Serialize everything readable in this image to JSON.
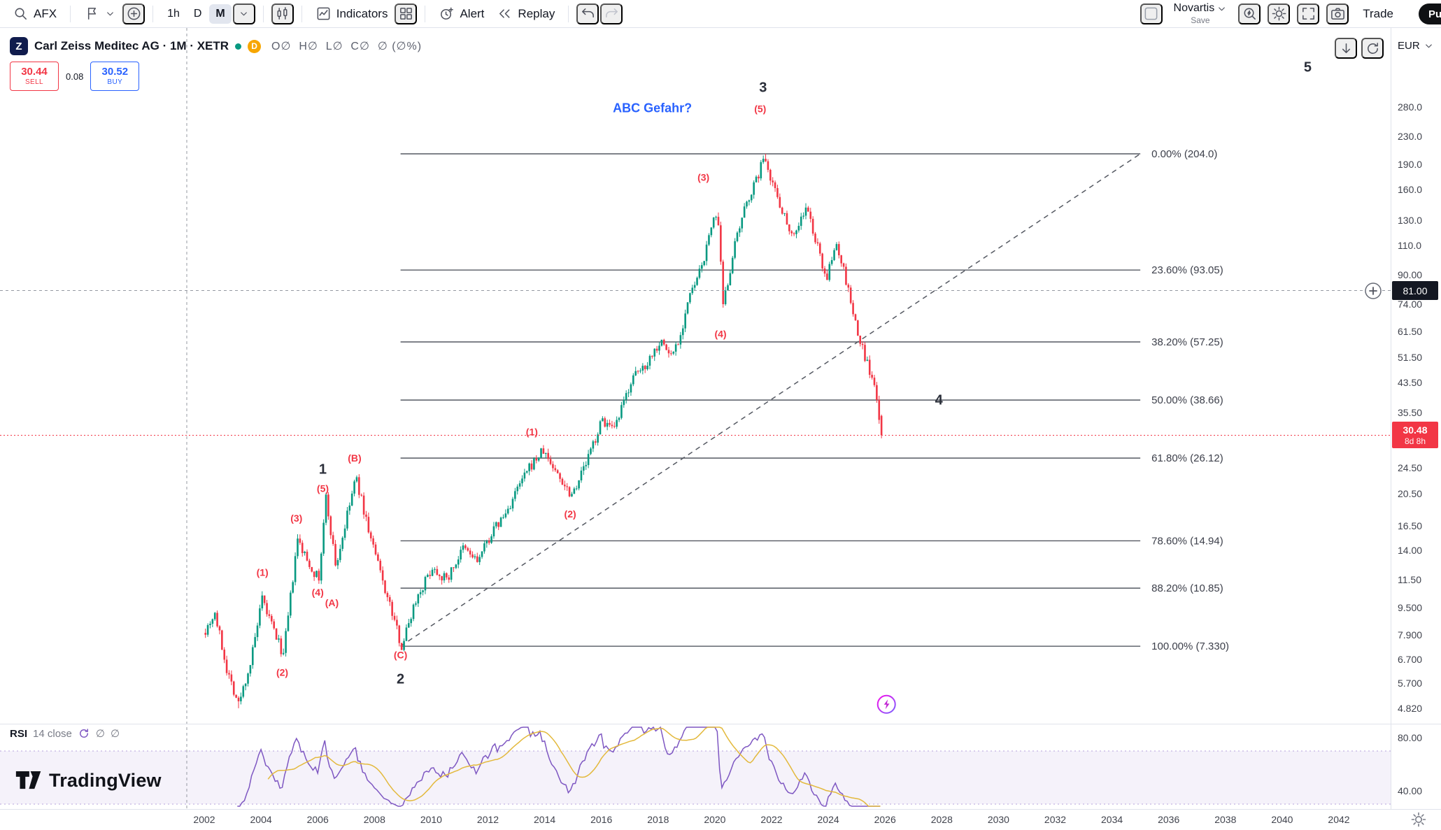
{
  "toolbar": {
    "symbol": "AFX",
    "tf_1h": "1h",
    "tf_d": "D",
    "tf_m": "M",
    "indicators": "Indicators",
    "alert": "Alert",
    "replay": "Replay",
    "layout_name": "Novartis",
    "save": "Save",
    "trade": "Trade",
    "publish": "Pu"
  },
  "symbol_header": {
    "logo_letter": "Z",
    "title": "Carl Zeiss Meditec AG · 1M · XETR",
    "delayed_badge": "D",
    "ohlc": "O∅  H∅  L∅  C∅  ∅ (∅%)"
  },
  "order_panel": {
    "sell_price": "30.44",
    "sell_label": "SELL",
    "spread": "0.08",
    "buy_price": "30.52",
    "buy_label": "BUY"
  },
  "price_scale": {
    "currency": "EUR",
    "crosshair_badge": "81.00",
    "last_badge": "30.48",
    "countdown": "8d 8h",
    "labels": [
      [
        "280.0",
        280
      ],
      [
        "230.0",
        230
      ],
      [
        "190.0",
        190
      ],
      [
        "160.0",
        160
      ],
      [
        "130.0",
        130
      ],
      [
        "110.0",
        110
      ],
      [
        "90.00",
        90
      ],
      [
        "74.00",
        74
      ],
      [
        "61.50",
        61.5
      ],
      [
        "51.50",
        51.5
      ],
      [
        "43.50",
        43.5
      ],
      [
        "35.50",
        35.5
      ],
      [
        "24.50",
        24.5
      ],
      [
        "20.50",
        20.5
      ],
      [
        "16.50",
        16.5
      ],
      [
        "14.00",
        14
      ],
      [
        "11.50",
        11.5
      ],
      [
        "9.500",
        9.5
      ],
      [
        "7.900",
        7.9
      ],
      [
        "6.700",
        6.7
      ],
      [
        "5.700",
        5.7
      ],
      [
        "4.820",
        4.82
      ]
    ]
  },
  "time_scale": {
    "labels": [
      "2002",
      "2004",
      "2006",
      "2008",
      "2010",
      "2012",
      "2014",
      "2016",
      "2018",
      "2020",
      "2022",
      "2024",
      "2026",
      "2028",
      "2030",
      "2032",
      "2034",
      "2036",
      "2038",
      "2040",
      "2042"
    ],
    "start_year": 2002,
    "step_years": 2
  },
  "rsi_pane": {
    "name": "RSI",
    "params": "14 close",
    "value1": "∅",
    "value2": "∅",
    "upper_label": "80.00",
    "lower_label": "40.00"
  },
  "watermark": "TradingView",
  "chart_data": {
    "type": "candlestick",
    "title": "Carl Zeiss Meditec AG",
    "interval": "1M",
    "exchange": "XETR",
    "currency": "EUR",
    "scale": "logarithmic",
    "up_color": "#089981",
    "down_color": "#F23645",
    "x_axis": {
      "start_year": 2002,
      "end_year": 2043.8,
      "visible_data_end": 2025.83
    },
    "y_axis": {
      "min": 4.5,
      "max": 480
    },
    "all_time_high": 204.0,
    "major_low_2008": 7.33,
    "last_price": 30.48,
    "crosshair_price": 81.0,
    "price_path": [
      [
        2002.0,
        8.2
      ],
      [
        2002.33,
        9.2
      ],
      [
        2002.75,
        6.3
      ],
      [
        2003.17,
        4.95
      ],
      [
        2003.6,
        6.6
      ],
      [
        2004.0,
        10.0
      ],
      [
        2004.4,
        8.2
      ],
      [
        2004.75,
        6.9
      ],
      [
        2005.25,
        15.0
      ],
      [
        2005.6,
        13.0
      ],
      [
        2006.0,
        11.5
      ],
      [
        2006.25,
        20.0
      ],
      [
        2006.6,
        12.5
      ],
      [
        2007.3,
        23.0
      ],
      [
        2007.8,
        15.5
      ],
      [
        2008.3,
        11.0
      ],
      [
        2008.92,
        7.33
      ],
      [
        2009.4,
        10.0
      ],
      [
        2010.0,
        12.5
      ],
      [
        2010.5,
        11.5
      ],
      [
        2011.1,
        14.2
      ],
      [
        2011.6,
        13.0
      ],
      [
        2012.1,
        15.8
      ],
      [
        2012.6,
        18.0
      ],
      [
        2013.1,
        22.0
      ],
      [
        2013.5,
        25.0
      ],
      [
        2013.9,
        27.5
      ],
      [
        2014.4,
        23.5
      ],
      [
        2014.9,
        20.5
      ],
      [
        2015.4,
        25.0
      ],
      [
        2016.0,
        34.0
      ],
      [
        2016.4,
        31.0
      ],
      [
        2017.0,
        44.0
      ],
      [
        2017.5,
        49.0
      ],
      [
        2018.05,
        58.0
      ],
      [
        2018.4,
        52.0
      ],
      [
        2018.75,
        60.0
      ],
      [
        2019.0,
        75.0
      ],
      [
        2019.4,
        90.0
      ],
      [
        2019.7,
        110.0
      ],
      [
        2019.95,
        140.0
      ],
      [
        2020.1,
        120.0
      ],
      [
        2020.25,
        72.0
      ],
      [
        2020.6,
        105.0
      ],
      [
        2020.9,
        128.0
      ],
      [
        2021.1,
        150.0
      ],
      [
        2021.4,
        168.0
      ],
      [
        2021.6,
        190.0
      ],
      [
        2021.75,
        200.0
      ],
      [
        2021.95,
        172.0
      ],
      [
        2022.2,
        150.0
      ],
      [
        2022.5,
        128.0
      ],
      [
        2022.75,
        118.0
      ],
      [
        2023.0,
        132.0
      ],
      [
        2023.2,
        142.0
      ],
      [
        2023.45,
        118.0
      ],
      [
        2023.7,
        100.0
      ],
      [
        2023.9,
        88.0
      ],
      [
        2024.1,
        100.0
      ],
      [
        2024.25,
        112.0
      ],
      [
        2024.45,
        96.0
      ],
      [
        2024.65,
        82.0
      ],
      [
        2024.85,
        68.0
      ],
      [
        2025.05,
        58.0
      ],
      [
        2025.25,
        52.0
      ],
      [
        2025.45,
        46.0
      ],
      [
        2025.6,
        41.0
      ],
      [
        2025.72,
        36.5
      ],
      [
        2025.83,
        30.48
      ]
    ],
    "fib_retracement": {
      "from_year": 2008.92,
      "to_year": 2035.0,
      "levels": [
        {
          "pct": "0.00%",
          "price": 204.0,
          "label": "0.00% (204.0)"
        },
        {
          "pct": "23.60%",
          "price": 93.05,
          "label": "23.60% (93.05)"
        },
        {
          "pct": "38.20%",
          "price": 57.25,
          "label": "38.20% (57.25)"
        },
        {
          "pct": "50.00%",
          "price": 38.66,
          "label": "50.00% (38.66)"
        },
        {
          "pct": "61.80%",
          "price": 26.12,
          "label": "61.80% (26.12)"
        },
        {
          "pct": "78.60%",
          "price": 14.94,
          "label": "78.60% (14.94)"
        },
        {
          "pct": "88.20%",
          "price": 10.85,
          "label": "88.20% (10.85)"
        },
        {
          "pct": "100.00%",
          "price": 7.33,
          "label": "100.00% (7.330)"
        }
      ]
    },
    "trendline": {
      "from": [
        2008.92,
        7.33
      ],
      "to": [
        2035.0,
        204.0
      ],
      "style": "dashed"
    },
    "annotation": {
      "text": "ABC Gefahr?",
      "year": 2017.8,
      "price": 270,
      "color": "#2962FF"
    },
    "wave_labels_major": [
      {
        "text": "1",
        "year": 2006.18,
        "price": 23.5
      },
      {
        "text": "2",
        "year": 2008.92,
        "price": 5.7
      },
      {
        "text": "3",
        "year": 2021.7,
        "price": 310
      },
      {
        "text": "4",
        "year": 2027.9,
        "price": 37.5
      },
      {
        "text": "5",
        "year": 2040.9,
        "price": 355
      }
    ],
    "wave_labels_minor": [
      {
        "text": "(1)",
        "year": 2004.05,
        "price": 11.8
      },
      {
        "text": "(2)",
        "year": 2004.75,
        "price": 6.0
      },
      {
        "text": "(3)",
        "year": 2005.25,
        "price": 17.0
      },
      {
        "text": "(4)",
        "year": 2006.0,
        "price": 10.3
      },
      {
        "text": "(5)",
        "year": 2006.18,
        "price": 20.8
      },
      {
        "text": "(A)",
        "year": 2006.5,
        "price": 9.6
      },
      {
        "text": "(B)",
        "year": 2007.3,
        "price": 25.5
      },
      {
        "text": "(C)",
        "year": 2008.92,
        "price": 6.75
      },
      {
        "text": "(1)",
        "year": 2013.55,
        "price": 30.5
      },
      {
        "text": "(2)",
        "year": 2014.9,
        "price": 17.5
      },
      {
        "text": "(3)",
        "year": 2019.6,
        "price": 170.0
      },
      {
        "text": "(4)",
        "year": 2020.2,
        "price": 59.0
      },
      {
        "text": "(5)",
        "year": 2021.6,
        "price": 270.0
      }
    ],
    "rsi": {
      "period": 14,
      "source": "close",
      "line_color": "#7E57C2",
      "ma_color": "#E3B93C",
      "upper_band": 70,
      "lower_band": 30
    },
    "event_marker": {
      "year": 2026.05,
      "price": 4.95,
      "type": "lightning"
    }
  }
}
